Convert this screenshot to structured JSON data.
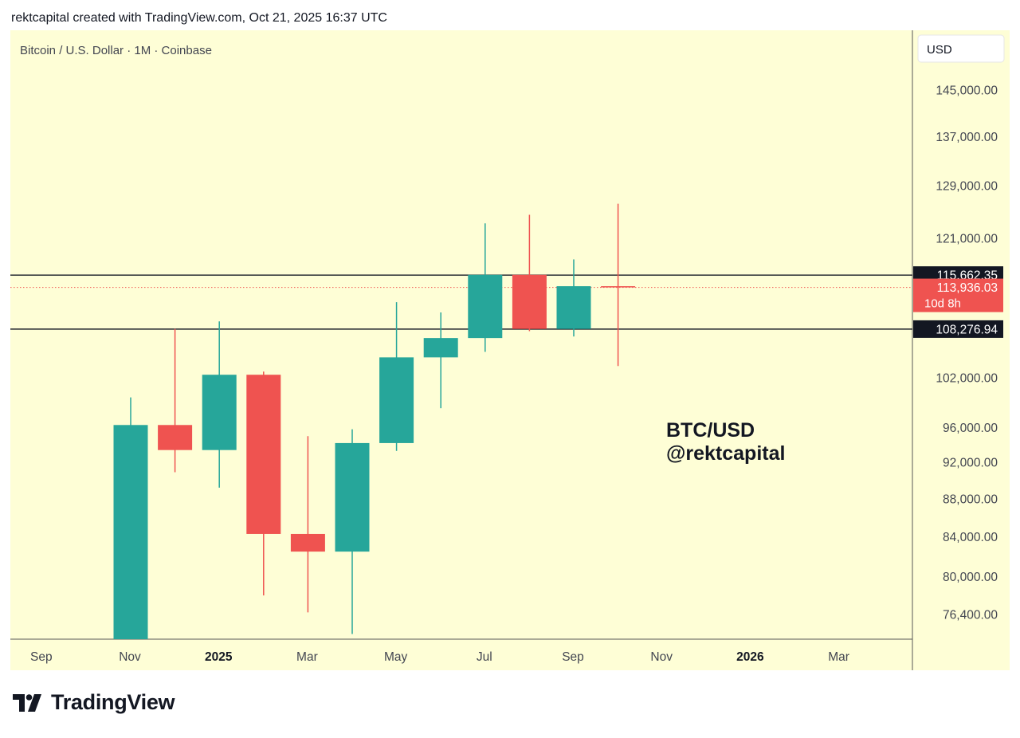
{
  "header": {
    "caption": "rektcapital created with TradingView.com, Oct 21, 2025 16:37 UTC"
  },
  "chart": {
    "title": "Bitcoin / U.S. Dollar · 1M · Coinbase",
    "currency_label": "USD",
    "watermark": [
      "BTC/USD",
      "@rektcapital"
    ],
    "background_color": "#fefed6",
    "up_color": "#26a69a",
    "down_color": "#ef5350"
  },
  "chart_data": {
    "type": "candlestick",
    "interval": "1M",
    "x_axis_labels": [
      "Sep",
      "Nov",
      "2025",
      "Mar",
      "May",
      "Jul",
      "Sep",
      "Nov",
      "2026",
      "Mar"
    ],
    "y_axis_labels": [
      "145,000.00",
      "137,000.00",
      "129,000.00",
      "121,000.00",
      "102,000.00",
      "96,000.00",
      "92,000.00",
      "88,000.00",
      "84,000.00",
      "80,000.00",
      "76,400.00"
    ],
    "candles": [
      {
        "month": "2024-11",
        "open": 70200,
        "high": 99600,
        "low": 66800,
        "close": 96300
      },
      {
        "month": "2024-12",
        "open": 96300,
        "high": 108300,
        "low": 90900,
        "close": 93400
      },
      {
        "month": "2025-01",
        "open": 93400,
        "high": 109300,
        "low": 89200,
        "close": 102400
      },
      {
        "month": "2025-02",
        "open": 102400,
        "high": 102800,
        "low": 78200,
        "close": 84300
      },
      {
        "month": "2025-03",
        "open": 84300,
        "high": 95000,
        "low": 76600,
        "close": 82500
      },
      {
        "month": "2025-04",
        "open": 82500,
        "high": 95800,
        "low": 74600,
        "close": 94200
      },
      {
        "month": "2025-05",
        "open": 94200,
        "high": 111900,
        "low": 93300,
        "close": 104600
      },
      {
        "month": "2025-06",
        "open": 104600,
        "high": 110500,
        "low": 98300,
        "close": 107100
      },
      {
        "month": "2025-07",
        "open": 107100,
        "high": 123200,
        "low": 105300,
        "close": 115700
      },
      {
        "month": "2025-08",
        "open": 115700,
        "high": 124500,
        "low": 108000,
        "close": 108300
      },
      {
        "month": "2025-09",
        "open": 108300,
        "high": 117900,
        "low": 107300,
        "close": 114100
      },
      {
        "month": "2025-10",
        "open": 114100,
        "high": 126200,
        "low": 103500,
        "close": 113936
      }
    ],
    "horizontal_levels": [
      {
        "label": "115,662.35",
        "value": 115662.35
      },
      {
        "label": "108,276.94",
        "value": 108276.94
      }
    ],
    "last_price": {
      "label": "113,936.03",
      "value": 113936.03,
      "countdown": "10d 8h"
    }
  },
  "footer": {
    "brand": "TradingView"
  }
}
